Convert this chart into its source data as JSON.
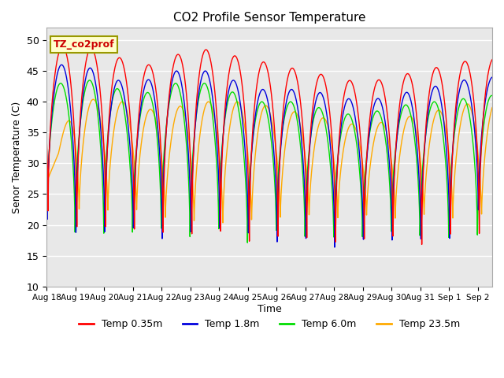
{
  "title": "CO2 Profile Sensor Temperature",
  "ylabel": "Senor Temperature (C)",
  "xlabel": "Time",
  "ylim": [
    10,
    52
  ],
  "yticks": [
    10,
    15,
    20,
    25,
    30,
    35,
    40,
    45,
    50
  ],
  "legend_label": "TZ_co2prof",
  "series_labels": [
    "Temp 0.35m",
    "Temp 1.8m",
    "Temp 6.0m",
    "Temp 23.5m"
  ],
  "series_colors": [
    "#ff0000",
    "#0000dd",
    "#00dd00",
    "#ffaa00"
  ],
  "background_color": "#e8e8e8",
  "x_tick_labels": [
    "Aug 18",
    "Aug 19",
    "Aug 20",
    "Aug 21",
    "Aug 22",
    "Aug 23",
    "Aug 24",
    "Aug 25",
    "Aug 26",
    "Aug 27",
    "Aug 28",
    "Aug 29",
    "Aug 30",
    "Aug 31",
    "Sep 1",
    "Sep 2"
  ],
  "n_days": 15.5
}
